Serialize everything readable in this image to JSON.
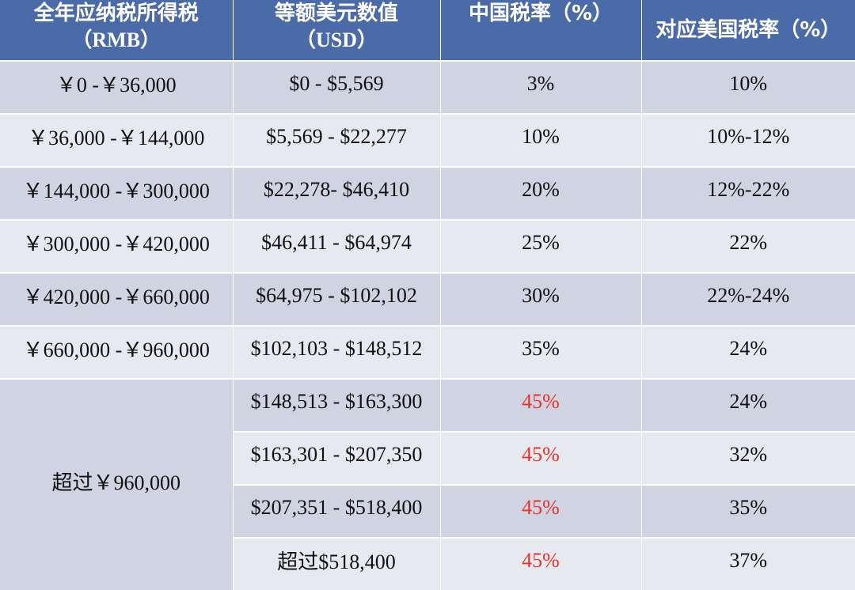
{
  "header": {
    "col1_line1": "全年应纳税所得税",
    "col1_line2": "（RMB）",
    "col2_line1": "等额美元数值",
    "col2_line2": "（USD）",
    "col3": "中国税率（%）",
    "col4": "对应美国税率（%）"
  },
  "rows": [
    {
      "rmb": "￥0 -￥36,000",
      "usd": "$0 - $5,569",
      "cn_rate": "3%",
      "us_rate": "10%"
    },
    {
      "rmb": "￥36,000 -￥144,000",
      "usd": "$5,569 - $22,277",
      "cn_rate": "10%",
      "us_rate": "10%-12%"
    },
    {
      "rmb": "￥144,000 -￥300,000",
      "usd": "$22,278- $46,410",
      "cn_rate": "20%",
      "us_rate": "12%-22%"
    },
    {
      "rmb": "￥300,000 -￥420,000",
      "usd": "$46,411 - $64,974",
      "cn_rate": "25%",
      "us_rate": "22%"
    },
    {
      "rmb": "￥420,000 -￥660,000",
      "usd": "$64,975 - $102,102",
      "cn_rate": "30%",
      "us_rate": "22%-24%"
    },
    {
      "rmb": "￥660,000 -￥960,000",
      "usd": "$102,103 - $148,512",
      "cn_rate": "35%",
      "us_rate": "24%"
    }
  ],
  "top_bracket": {
    "rmb": "超过￥960,000",
    "sub_rows": [
      {
        "usd": "$148,513 - $163,300",
        "cn_rate": "45%",
        "us_rate": "24%"
      },
      {
        "usd": "$163,301 - $207,350",
        "cn_rate": "45%",
        "us_rate": "32%"
      },
      {
        "usd": "$207,351 - $518,400",
        "cn_rate": "45%",
        "us_rate": "35%"
      },
      {
        "usd": "超过$518,400",
        "cn_rate": "45%",
        "us_rate": "37%"
      }
    ]
  },
  "colors": {
    "header_bg": "#4a6aa8",
    "row_dark": "#cfd3e2",
    "row_light": "#e7e9f1",
    "highlight_rate": "#e8332c"
  }
}
